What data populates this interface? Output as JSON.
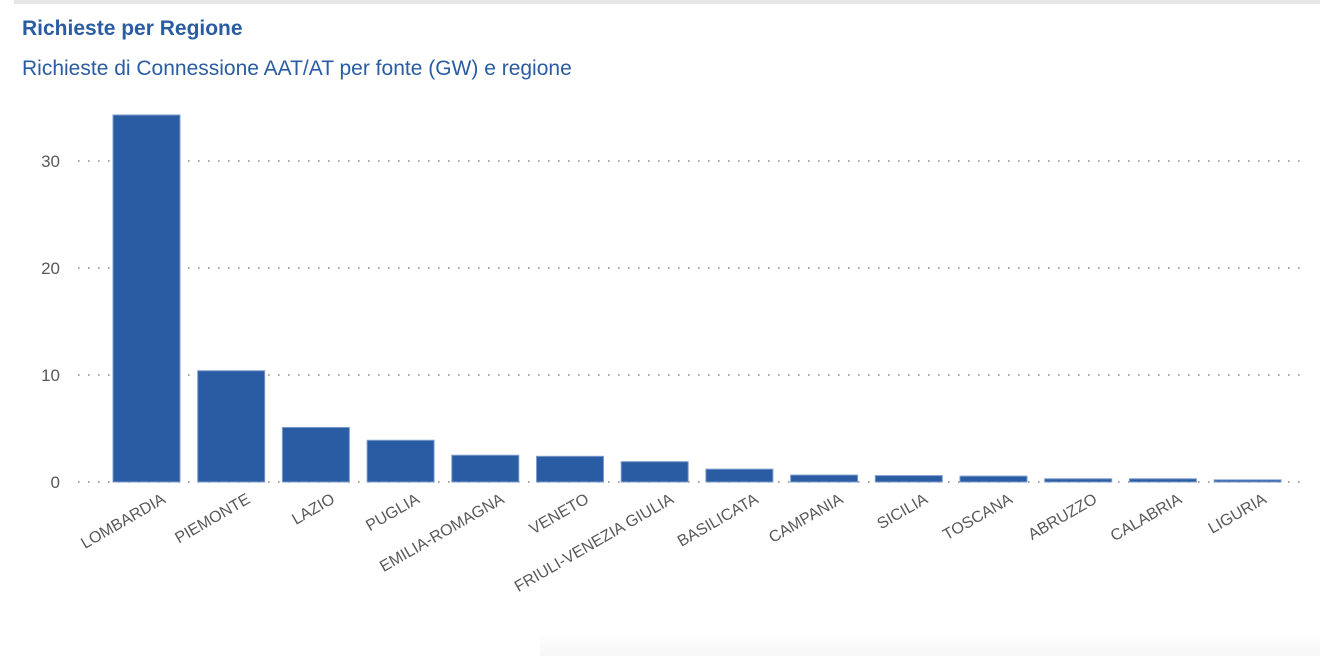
{
  "header": {
    "title": "Richieste per Regione",
    "subtitle": "Richieste di Connessione AAT/AT per fonte (GW) e regione"
  },
  "colors": {
    "bar": "#2a5ca3",
    "title": "#2a5ca3",
    "axis_text": "#595959",
    "grid": "#8c8c8c"
  },
  "chart_data": {
    "type": "bar",
    "title": "Richieste per Regione",
    "subtitle": "Richieste di Connessione AAT/AT per fonte (GW) e regione",
    "xlabel": "",
    "ylabel": "",
    "categories": [
      "LOMBARDIA",
      "PIEMONTE",
      "LAZIO",
      "PUGLIA",
      "EMILIA-ROMAGNA",
      "VENETO",
      "FRIULI-VENEZIA GIULIA",
      "BASILICATA",
      "CAMPANIA",
      "SICILIA",
      "TOSCANA",
      "ABRUZZO",
      "CALABRIA",
      "LIGURIA"
    ],
    "values": [
      34.3,
      10.4,
      5.1,
      3.9,
      2.5,
      2.4,
      1.9,
      1.2,
      0.65,
      0.6,
      0.55,
      0.3,
      0.3,
      0.2
    ],
    "yticks": [
      0,
      10,
      20,
      30
    ],
    "ylim": [
      0,
      35
    ],
    "grid": true,
    "grid_style": "dotted-horizontal",
    "legend": "none",
    "x_label_rotation": -30
  }
}
